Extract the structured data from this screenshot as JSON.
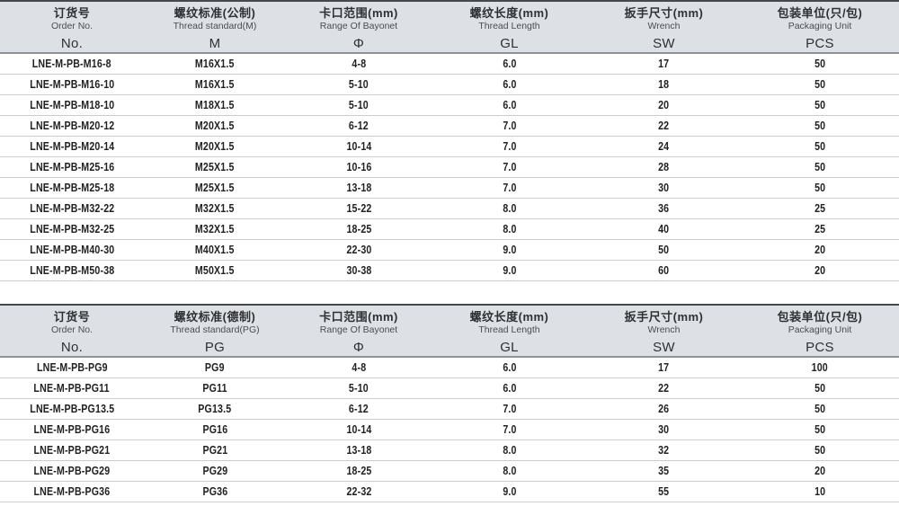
{
  "colors": {
    "header_bg": "#dde1e6",
    "top_border": "#45494e",
    "header_rule": "#8e939a",
    "row_line": "#c9cdd2",
    "text": "#2f3033"
  },
  "tables": [
    {
      "name": "metric-thread-spec-table",
      "columns": [
        {
          "zh": "订货号",
          "en": "Order No.",
          "symbol": "No."
        },
        {
          "zh": "螺纹标准(公制)",
          "en": "Thread standard(M)",
          "symbol": "M"
        },
        {
          "zh": "卡口范围(mm)",
          "en": "Range Of Bayonet",
          "symbol": "Φ"
        },
        {
          "zh": "螺纹长度(mm)",
          "en": "Thread Length",
          "symbol": "GL"
        },
        {
          "zh": "扳手尺寸(mm)",
          "en": "Wrench",
          "symbol": "SW"
        },
        {
          "zh": "包装单位(只/包)",
          "en": "Packaging Unit",
          "symbol": "PCS"
        }
      ],
      "rows": [
        [
          "LNE-M-PB-M16-8",
          "M16X1.5",
          "4-8",
          "6.0",
          "17",
          "50"
        ],
        [
          "LNE-M-PB-M16-10",
          "M16X1.5",
          "5-10",
          "6.0",
          "18",
          "50"
        ],
        [
          "LNE-M-PB-M18-10",
          "M18X1.5",
          "5-10",
          "6.0",
          "20",
          "50"
        ],
        [
          "LNE-M-PB-M20-12",
          "M20X1.5",
          "6-12",
          "7.0",
          "22",
          "50"
        ],
        [
          "LNE-M-PB-M20-14",
          "M20X1.5",
          "10-14",
          "7.0",
          "24",
          "50"
        ],
        [
          "LNE-M-PB-M25-16",
          "M25X1.5",
          "10-16",
          "7.0",
          "28",
          "50"
        ],
        [
          "LNE-M-PB-M25-18",
          "M25X1.5",
          "13-18",
          "7.0",
          "30",
          "50"
        ],
        [
          "LNE-M-PB-M32-22",
          "M32X1.5",
          "15-22",
          "8.0",
          "36",
          "25"
        ],
        [
          "LNE-M-PB-M32-25",
          "M32X1.5",
          "18-25",
          "8.0",
          "40",
          "25"
        ],
        [
          "LNE-M-PB-M40-30",
          "M40X1.5",
          "22-30",
          "9.0",
          "50",
          "20"
        ],
        [
          "LNE-M-PB-M50-38",
          "M50X1.5",
          "30-38",
          "9.0",
          "60",
          "20"
        ]
      ]
    },
    {
      "name": "pg-thread-spec-table",
      "columns": [
        {
          "zh": "订货号",
          "en": "Order No.",
          "symbol": "No."
        },
        {
          "zh": "螺纹标准(德制)",
          "en": "Thread standard(PG)",
          "symbol": "PG"
        },
        {
          "zh": "卡口范围(mm)",
          "en": "Range Of Bayonet",
          "symbol": "Φ"
        },
        {
          "zh": "螺纹长度(mm)",
          "en": "Thread Length",
          "symbol": "GL"
        },
        {
          "zh": "扳手尺寸(mm)",
          "en": "Wrench",
          "symbol": "SW"
        },
        {
          "zh": "包装单位(只/包)",
          "en": "Packaging Unit",
          "symbol": "PCS"
        }
      ],
      "rows": [
        [
          "LNE-M-PB-PG9",
          "PG9",
          "4-8",
          "6.0",
          "17",
          "100"
        ],
        [
          "LNE-M-PB-PG11",
          "PG11",
          "5-10",
          "6.0",
          "22",
          "50"
        ],
        [
          "LNE-M-PB-PG13.5",
          "PG13.5",
          "6-12",
          "7.0",
          "26",
          "50"
        ],
        [
          "LNE-M-PB-PG16",
          "PG16",
          "10-14",
          "7.0",
          "30",
          "50"
        ],
        [
          "LNE-M-PB-PG21",
          "PG21",
          "13-18",
          "8.0",
          "32",
          "50"
        ],
        [
          "LNE-M-PB-PG29",
          "PG29",
          "18-25",
          "8.0",
          "35",
          "20"
        ],
        [
          "LNE-M-PB-PG36",
          "PG36",
          "22-32",
          "9.0",
          "55",
          "10"
        ]
      ]
    }
  ]
}
